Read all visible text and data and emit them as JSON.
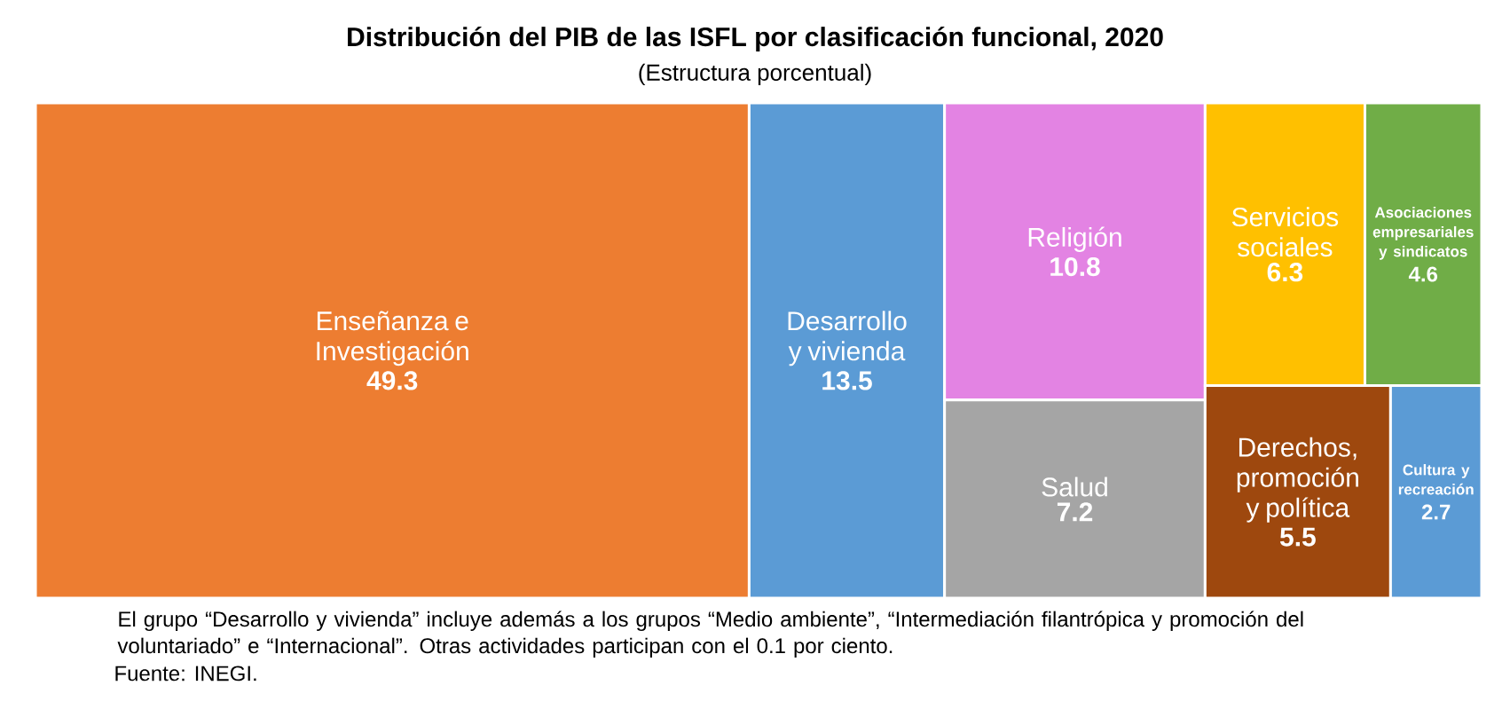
{
  "chart_data": {
    "type": "other",
    "title": "Distribución del PIB de las ISFL por clasificación funcional, 2020",
    "subtitle": "(Estructura porcentual)",
    "categories": [
      "Enseñanza e Investigación",
      "Desarrollo y vivienda",
      "Religión",
      "Salud",
      "Servicios sociales",
      "Asociaciones empresariales y sindicatos",
      "Derechos, promoción y política",
      "Cultura y recreación"
    ],
    "values": [
      49.3,
      13.5,
      10.8,
      7.2,
      6.3,
      4.6,
      5.5,
      2.7
    ],
    "colors": [
      "#ed7d31",
      "#5b9bd5",
      "#e383e3",
      "#a5a5a5",
      "#ffc000",
      "#70ad47",
      "#9e480e",
      "#5b9bd5"
    ],
    "data_labels": true,
    "annotations": [
      "El grupo “Desarrollo y vivienda” incluye además a los grupos “Medio ambiente”, “Intermediación filantrópica y promoción del voluntariado” e “Internacional”. Otras actividades participan con el 0.1 por ciento.",
      "Fuente: INEGI."
    ]
  }
}
